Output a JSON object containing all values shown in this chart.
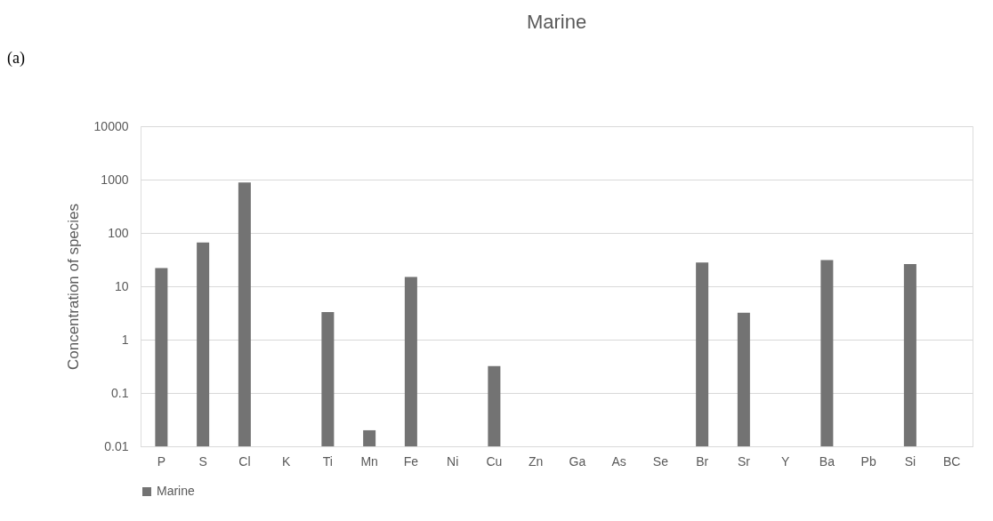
{
  "chart_data": {
    "type": "bar",
    "title": "Marine",
    "ylabel": "Concentration of species",
    "annotations": [
      "(a)"
    ],
    "categories": [
      "P",
      "S",
      "Cl",
      "K",
      "Ti",
      "Mn",
      "Fe",
      "Ni",
      "Cu",
      "Zn",
      "Ga",
      "As",
      "Se",
      "Br",
      "Sr",
      "Y",
      "Ba",
      "Pb",
      "Si",
      "BC"
    ],
    "series": [
      {
        "name": "Marine",
        "color": "#737373",
        "values": [
          22,
          66,
          880,
          null,
          3.3,
          0.02,
          15,
          null,
          0.32,
          null,
          null,
          null,
          null,
          28,
          3.2,
          null,
          31,
          null,
          26,
          null
        ]
      }
    ],
    "log": true,
    "ylim": [
      0.01,
      10000
    ],
    "yticks": [
      0.01,
      0.1,
      1,
      10,
      100,
      1000,
      10000
    ],
    "grid": "y",
    "legend": "bottom"
  }
}
